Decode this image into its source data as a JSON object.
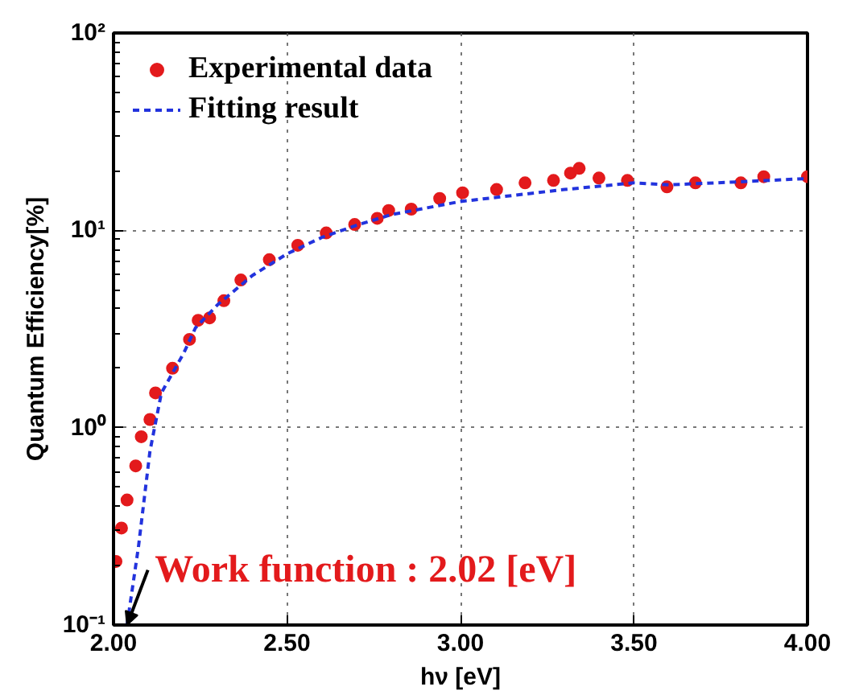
{
  "chart_data": {
    "type": "scatter",
    "xlabel": "hν [eV]",
    "ylabel": "Quantum Efficiency[%]",
    "log": "y",
    "grid": true,
    "legend": "top left",
    "xlim": [
      2.0,
      4.0
    ],
    "xticks": [
      {
        "value": 2.0,
        "label": "2.00"
      },
      {
        "value": 2.5,
        "label": "2.50"
      },
      {
        "value": 3.0,
        "label": "3.00"
      },
      {
        "value": 3.5,
        "label": "3.50"
      },
      {
        "value": 4.0,
        "label": "4.00"
      }
    ],
    "ylim": [
      0.1,
      100
    ],
    "yticks": [
      {
        "value": 0.1,
        "label": "10⁻¹"
      },
      {
        "value": 1,
        "label": "10⁰"
      },
      {
        "value": 10,
        "label": "10¹"
      },
      {
        "value": 100,
        "label": "10²"
      }
    ],
    "series": [
      {
        "name": "Experimental data",
        "marker": "circle",
        "color": "#e31a1c",
        "x": [
          2.007,
          2.023,
          2.039,
          2.064,
          2.08,
          2.105,
          2.121,
          2.17,
          2.219,
          2.244,
          2.277,
          2.318,
          2.367,
          2.449,
          2.531,
          2.613,
          2.695,
          2.76,
          2.793,
          2.858,
          2.94,
          3.006,
          3.104,
          3.186,
          3.268,
          3.317,
          3.342,
          3.399,
          3.481,
          3.595,
          3.677,
          3.808,
          3.874,
          4.0
        ],
        "values": [
          0.21,
          0.31,
          0.43,
          0.64,
          0.9,
          1.1,
          1.5,
          2.0,
          2.8,
          3.5,
          3.6,
          4.4,
          5.6,
          7.1,
          8.4,
          9.7,
          10.7,
          11.5,
          12.6,
          12.8,
          14.5,
          15.5,
          16.1,
          17.4,
          17.9,
          19.5,
          20.6,
          18.4,
          17.9,
          16.6,
          17.4,
          17.4,
          18.7,
          18.7
        ]
      },
      {
        "name": "Fitting result",
        "type": "line",
        "line_style": "dashed",
        "color": "#2233dd",
        "x": [
          2.039,
          2.072,
          2.105,
          2.138,
          2.203,
          2.236,
          2.3,
          2.4,
          2.5,
          2.6,
          2.7,
          2.8,
          3.0,
          3.3,
          3.5,
          3.6,
          3.8,
          4.0
        ],
        "values": [
          0.1,
          0.25,
          0.76,
          1.5,
          2.4,
          3.2,
          4.2,
          5.9,
          7.6,
          9.2,
          10.6,
          12.0,
          14.0,
          16.1,
          17.4,
          17.0,
          17.6,
          18.3
        ]
      }
    ],
    "annotations": [
      {
        "text": "Work function : 2.02 [eV]",
        "x": 2.039,
        "y": 0.1
      }
    ]
  }
}
